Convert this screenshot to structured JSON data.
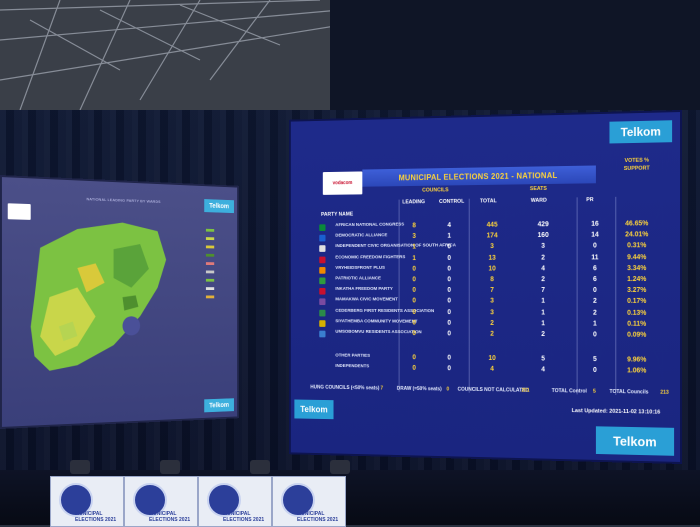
{
  "left_screen": {
    "map_title": "NATIONAL LEADING PARTY BY WARDS",
    "telkom": "Telkom"
  },
  "right_screen": {
    "title": "MUNICIPAL ELECTIONS 2021 - NATIONAL",
    "sponsor": "vodacom",
    "telkom": "Telkom",
    "headers": {
      "councils": "COUNCILS",
      "seats": "SEATS",
      "votes_support": "VOTES % SUPPORT",
      "party_name": "PARTY NAME",
      "leading": "LEADING",
      "control": "CONTROL",
      "total": "TOTAL",
      "ward": "WARD",
      "pr": "PR"
    },
    "parties": [
      {
        "name": "AFRICAN NATIONAL CONGRESS",
        "leading": "8",
        "control": "4",
        "total": "445",
        "ward": "429",
        "pr": "16",
        "support": "46.65%",
        "color": "#0a8a3a"
      },
      {
        "name": "DEMOCRATIC ALLIANCE",
        "leading": "3",
        "control": "1",
        "total": "174",
        "ward": "160",
        "pr": "14",
        "support": "24.01%",
        "color": "#1a5fd0"
      },
      {
        "name": "INDEPENDENT CIVIC ORGANISATION OF SOUTH AFRICA",
        "leading": "1",
        "control": "0",
        "total": "3",
        "ward": "3",
        "pr": "0",
        "support": "0.31%",
        "color": "#e0e0e0"
      },
      {
        "name": "ECONOMIC FREEDOM FIGHTERS",
        "leading": "1",
        "control": "0",
        "total": "13",
        "ward": "2",
        "pr": "11",
        "support": "9.44%",
        "color": "#c8102e"
      },
      {
        "name": "VRYHEIDSFRONT PLUS",
        "leading": "0",
        "control": "0",
        "total": "10",
        "ward": "4",
        "pr": "6",
        "support": "3.34%",
        "color": "#f08a00"
      },
      {
        "name": "PATRIOTIC ALLIANCE",
        "leading": "0",
        "control": "0",
        "total": "8",
        "ward": "2",
        "pr": "6",
        "support": "1.24%",
        "color": "#2f9b3d"
      },
      {
        "name": "INKATHA FREEDOM PARTY",
        "leading": "0",
        "control": "0",
        "total": "7",
        "ward": "7",
        "pr": "0",
        "support": "3.27%",
        "color": "#c8102e"
      },
      {
        "name": "MAMAKWA CIVIC MOVEMENT",
        "leading": "0",
        "control": "0",
        "total": "3",
        "ward": "1",
        "pr": "2",
        "support": "0.17%",
        "color": "#7a4aa0"
      },
      {
        "name": "CEDERBERG FIRST RESIDENTS ASSOCIATION",
        "leading": "0",
        "control": "0",
        "total": "3",
        "ward": "1",
        "pr": "2",
        "support": "0.13%",
        "color": "#2b8a4a"
      },
      {
        "name": "SIYATHEMBA COMMUNITY MOVEMENT",
        "leading": "0",
        "control": "0",
        "total": "2",
        "ward": "1",
        "pr": "1",
        "support": "0.11%",
        "color": "#d4b000"
      },
      {
        "name": "UMSOBOMVU RESIDENTS ASSOCIATION",
        "leading": "0",
        "control": "0",
        "total": "2",
        "ward": "2",
        "pr": "0",
        "support": "0.09%",
        "color": "#3a7fd0"
      }
    ],
    "other_parties": {
      "name": "OTHER PARTIES",
      "leading": "0",
      "control": "0",
      "total": "10",
      "ward": "5",
      "pr": "5",
      "support": "9.96%"
    },
    "independents": {
      "name": "INDEPENDENTS",
      "leading": "0",
      "control": "0",
      "total": "4",
      "ward": "4",
      "pr": "0",
      "support": "1.06%"
    },
    "footer": {
      "hung_label": "HUNG COUNCILS (<50% seats)",
      "hung_value": "7",
      "draw_label": "DRAW (=50% seats)",
      "draw_value": "0",
      "not_calc_label": "COUNCILS NOT CALCULATED",
      "not_calc_value": "201",
      "total_control_label": "TOTAL Control",
      "total_control_value": "5",
      "total_councils_label": "TOTAL Councils",
      "total_councils_value": "213",
      "last_updated": "Last Updated: 2021-11-02 13:10:16"
    }
  },
  "desk": {
    "banner_text": "MUNICIPAL ELECTIONS 2021"
  }
}
